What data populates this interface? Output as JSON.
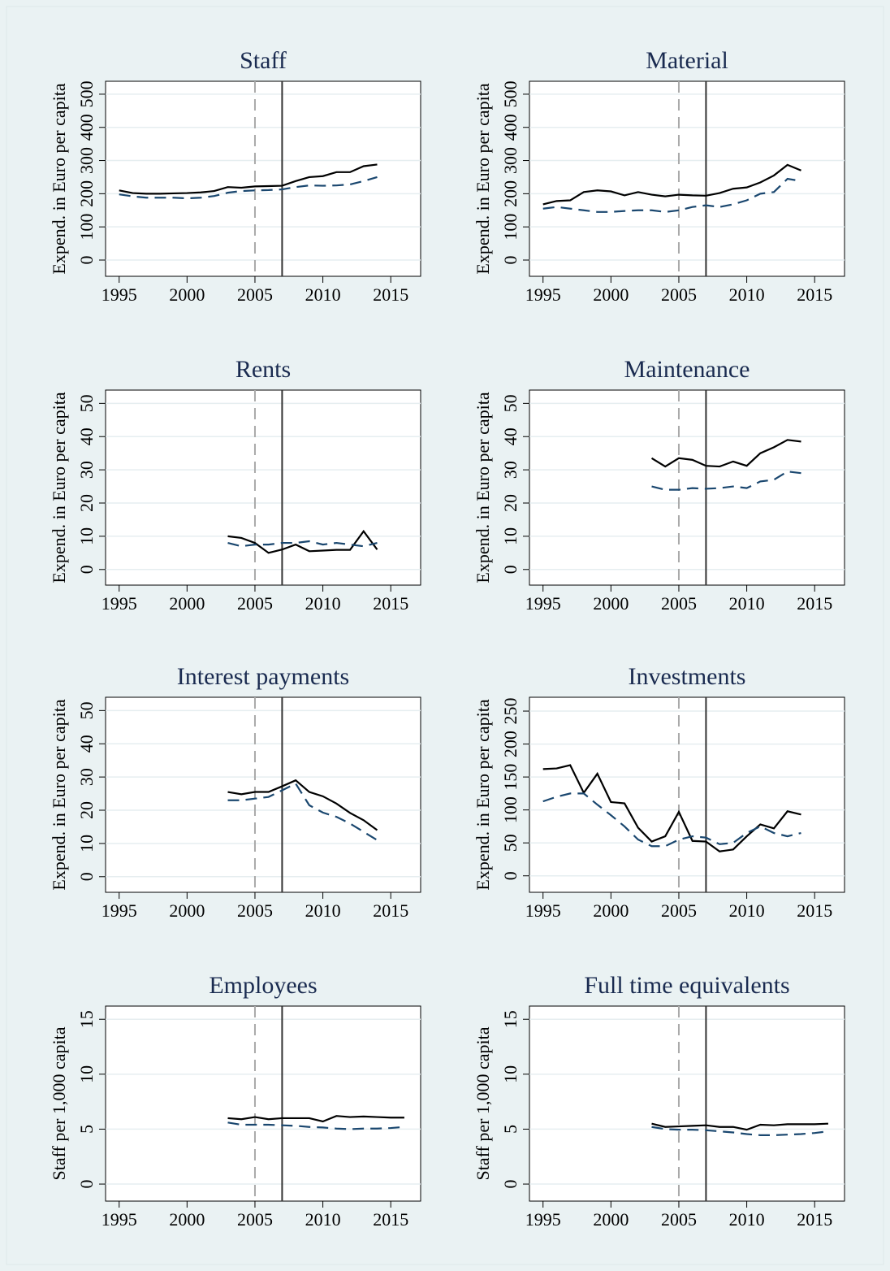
{
  "chart_data": [
    {
      "type": "line",
      "title": "Staff",
      "ylabel": "Expend. in Euro per capita",
      "x": [
        1995,
        1996,
        1997,
        1998,
        1999,
        2000,
        2001,
        2002,
        2003,
        2004,
        2005,
        2006,
        2007,
        2008,
        2009,
        2010,
        2011,
        2012,
        2013,
        2014
      ],
      "series": [
        {
          "color": "#000000",
          "style": "solid",
          "values": [
            210,
            202,
            200,
            200,
            201,
            202,
            204,
            208,
            220,
            218,
            222,
            223,
            224,
            238,
            250,
            253,
            265,
            265,
            283,
            288
          ]
        },
        {
          "color": "#1a476f",
          "style": "dashed",
          "values": [
            198,
            192,
            188,
            188,
            188,
            186,
            188,
            193,
            203,
            208,
            210,
            211,
            213,
            220,
            225,
            224,
            225,
            228,
            238,
            250
          ]
        }
      ],
      "xlim": [
        1994,
        2017.2
      ],
      "xticks": [
        1995,
        2000,
        2005,
        2010,
        2015
      ],
      "ylim": [
        -49,
        539
      ],
      "yticks": [
        0,
        100,
        200,
        300,
        400,
        500
      ],
      "grid": true,
      "vlines": [
        {
          "value": 2005,
          "color": "#aaaaaa",
          "style": "dashed"
        },
        {
          "value": 2007,
          "color": "#333333",
          "style": "solid"
        }
      ]
    },
    {
      "type": "line",
      "title": "Material",
      "ylabel": "Expend. in Euro per capita",
      "x": [
        1995,
        1996,
        1997,
        1998,
        1999,
        2000,
        2001,
        2002,
        2003,
        2004,
        2005,
        2006,
        2007,
        2008,
        2009,
        2010,
        2011,
        2012,
        2013,
        2014
      ],
      "series": [
        {
          "color": "#000000",
          "style": "solid",
          "values": [
            168,
            178,
            180,
            205,
            210,
            207,
            195,
            205,
            197,
            192,
            197,
            195,
            194,
            202,
            215,
            219,
            234,
            255,
            287,
            270
          ]
        },
        {
          "color": "#1a476f",
          "style": "dashed",
          "values": [
            155,
            160,
            155,
            150,
            145,
            145,
            148,
            150,
            150,
            145,
            150,
            160,
            165,
            160,
            168,
            180,
            200,
            205,
            245,
            238
          ]
        }
      ],
      "xlim": [
        1994,
        2017.2
      ],
      "xticks": [
        1995,
        2000,
        2005,
        2010,
        2015
      ],
      "ylim": [
        -49,
        539
      ],
      "yticks": [
        0,
        100,
        200,
        300,
        400,
        500
      ],
      "grid": true,
      "vlines": [
        {
          "value": 2005,
          "color": "#aaaaaa",
          "style": "dashed"
        },
        {
          "value": 2007,
          "color": "#333333",
          "style": "solid"
        }
      ]
    },
    {
      "type": "line",
      "title": "Rents",
      "ylabel": "Expend. in Euro per capita",
      "x": [
        2003,
        2004,
        2005,
        2006,
        2007,
        2008,
        2009,
        2010,
        2011,
        2012,
        2013,
        2014
      ],
      "series": [
        {
          "color": "#000000",
          "style": "solid",
          "values": [
            10,
            9.5,
            8,
            5,
            6,
            7.5,
            5.5,
            5.7,
            5.9,
            5.9,
            11.5,
            6
          ]
        },
        {
          "color": "#1a476f",
          "style": "dashed",
          "values": [
            8,
            7,
            7.5,
            7.5,
            8,
            8,
            8.5,
            7.5,
            8,
            7.5,
            7,
            8
          ]
        }
      ],
      "xlim": [
        1994,
        2017.2
      ],
      "xticks": [
        1995,
        2000,
        2005,
        2010,
        2015
      ],
      "ylim": [
        -4.7,
        54
      ],
      "yticks": [
        0,
        10,
        20,
        30,
        40,
        50
      ],
      "grid": true,
      "vlines": [
        {
          "value": 2005,
          "color": "#aaaaaa",
          "style": "dashed"
        },
        {
          "value": 2007,
          "color": "#333333",
          "style": "solid"
        }
      ]
    },
    {
      "type": "line",
      "title": "Maintenance",
      "ylabel": "Expend. in Euro per capita",
      "x": [
        2003,
        2004,
        2005,
        2006,
        2007,
        2008,
        2009,
        2010,
        2011,
        2012,
        2013,
        2014
      ],
      "series": [
        {
          "color": "#000000",
          "style": "solid",
          "values": [
            33.5,
            31,
            33.5,
            33,
            31.2,
            31,
            32.5,
            31.2,
            35,
            36.8,
            39,
            38.5
          ]
        },
        {
          "color": "#1a476f",
          "style": "dashed",
          "values": [
            25,
            24,
            24,
            24.5,
            24.3,
            24.5,
            25,
            24.5,
            26.5,
            27,
            29.5,
            29
          ]
        }
      ],
      "xlim": [
        1994,
        2017.2
      ],
      "xticks": [
        1995,
        2000,
        2005,
        2010,
        2015
      ],
      "ylim": [
        -4.7,
        54
      ],
      "yticks": [
        0,
        10,
        20,
        30,
        40,
        50
      ],
      "grid": true,
      "vlines": [
        {
          "value": 2005,
          "color": "#aaaaaa",
          "style": "dashed"
        },
        {
          "value": 2007,
          "color": "#333333",
          "style": "solid"
        }
      ]
    },
    {
      "type": "line",
      "title": "Interest payments",
      "ylabel": "Expend. in Euro per capita",
      "x": [
        2003,
        2004,
        2005,
        2006,
        2007,
        2008,
        2009,
        2010,
        2011,
        2012,
        2013,
        2014
      ],
      "series": [
        {
          "color": "#000000",
          "style": "solid",
          "values": [
            25.5,
            24.8,
            25.5,
            25.5,
            27.2,
            29,
            25.5,
            24.2,
            22,
            19.2,
            17,
            14
          ]
        },
        {
          "color": "#1a476f",
          "style": "dashed",
          "values": [
            23,
            23,
            23.5,
            24,
            26,
            28,
            21.5,
            19.3,
            18,
            16,
            13.5,
            11
          ]
        }
      ],
      "xlim": [
        1994,
        2017.2
      ],
      "xticks": [
        1995,
        2000,
        2005,
        2010,
        2015
      ],
      "ylim": [
        -4.7,
        54
      ],
      "yticks": [
        0,
        10,
        20,
        30,
        40,
        50
      ],
      "grid": true,
      "vlines": [
        {
          "value": 2005,
          "color": "#aaaaaa",
          "style": "dashed"
        },
        {
          "value": 2007,
          "color": "#333333",
          "style": "solid"
        }
      ]
    },
    {
      "type": "line",
      "title": "Investments",
      "ylabel": "Expend. in Euro per capita",
      "x": [
        1995,
        1996,
        1997,
        1998,
        1999,
        2000,
        2001,
        2002,
        2003,
        2004,
        2005,
        2006,
        2007,
        2008,
        2009,
        2010,
        2011,
        2012,
        2013,
        2014
      ],
      "series": [
        {
          "color": "#000000",
          "style": "solid",
          "values": [
            162,
            163,
            168,
            126,
            155,
            112,
            110,
            73,
            52,
            60,
            97,
            53,
            52,
            37,
            40,
            60,
            78,
            72,
            98,
            93
          ]
        },
        {
          "color": "#1a476f",
          "style": "dashed",
          "values": [
            113,
            120,
            125,
            125,
            108,
            92,
            75,
            55,
            45,
            45,
            55,
            60,
            58,
            48,
            50,
            65,
            75,
            65,
            60,
            65
          ]
        }
      ],
      "xlim": [
        1994,
        2017.2
      ],
      "xticks": [
        1995,
        2000,
        2005,
        2010,
        2015
      ],
      "ylim": [
        -25,
        271
      ],
      "yticks": [
        0,
        50,
        100,
        150,
        200,
        250
      ],
      "grid": true,
      "vlines": [
        {
          "value": 2005,
          "color": "#aaaaaa",
          "style": "dashed"
        },
        {
          "value": 2007,
          "color": "#333333",
          "style": "solid"
        }
      ]
    },
    {
      "type": "line",
      "title": "Employees",
      "ylabel": "Staff per 1,000 capita",
      "x": [
        2003,
        2004,
        2005,
        2006,
        2007,
        2008,
        2009,
        2010,
        2011,
        2012,
        2013,
        2014,
        2015,
        2016
      ],
      "series": [
        {
          "color": "#000000",
          "style": "solid",
          "values": [
            6.0,
            5.9,
            6.1,
            5.9,
            6.0,
            6.0,
            6.0,
            5.7,
            6.2,
            6.1,
            6.15,
            6.1,
            6.05,
            6.05
          ]
        },
        {
          "color": "#1a476f",
          "style": "dashed",
          "values": [
            5.6,
            5.4,
            5.4,
            5.4,
            5.35,
            5.3,
            5.2,
            5.15,
            5.05,
            5.0,
            5.05,
            5.05,
            5.1,
            5.2
          ]
        }
      ],
      "xlim": [
        1994,
        2017.2
      ],
      "xticks": [
        1995,
        2000,
        2005,
        2010,
        2015
      ],
      "ylim": [
        -1.55,
        16.2
      ],
      "yticks": [
        0,
        5,
        10,
        15
      ],
      "grid": true,
      "vlines": [
        {
          "value": 2005,
          "color": "#aaaaaa",
          "style": "dashed"
        },
        {
          "value": 2007,
          "color": "#333333",
          "style": "solid"
        }
      ]
    },
    {
      "type": "line",
      "title": "Full time equivalents",
      "ylabel": "Staff per 1,000 capita",
      "x": [
        2003,
        2004,
        2005,
        2006,
        2007,
        2008,
        2009,
        2010,
        2011,
        2012,
        2013,
        2014,
        2015,
        2016
      ],
      "series": [
        {
          "color": "#000000",
          "style": "solid",
          "values": [
            5.5,
            5.2,
            5.25,
            5.3,
            5.35,
            5.2,
            5.2,
            4.95,
            5.4,
            5.35,
            5.45,
            5.45,
            5.45,
            5.5
          ]
        },
        {
          "color": "#1a476f",
          "style": "dashed",
          "values": [
            5.2,
            5.0,
            4.95,
            4.95,
            4.9,
            4.8,
            4.7,
            4.55,
            4.45,
            4.45,
            4.5,
            4.55,
            4.65,
            4.8
          ]
        }
      ],
      "xlim": [
        1994,
        2017.2
      ],
      "xticks": [
        1995,
        2000,
        2005,
        2010,
        2015
      ],
      "ylim": [
        -1.55,
        16.2
      ],
      "yticks": [
        0,
        5,
        10,
        15
      ],
      "grid": true,
      "vlines": [
        {
          "value": 2005,
          "color": "#aaaaaa",
          "style": "dashed"
        },
        {
          "value": 2007,
          "color": "#333333",
          "style": "solid"
        }
      ]
    }
  ]
}
